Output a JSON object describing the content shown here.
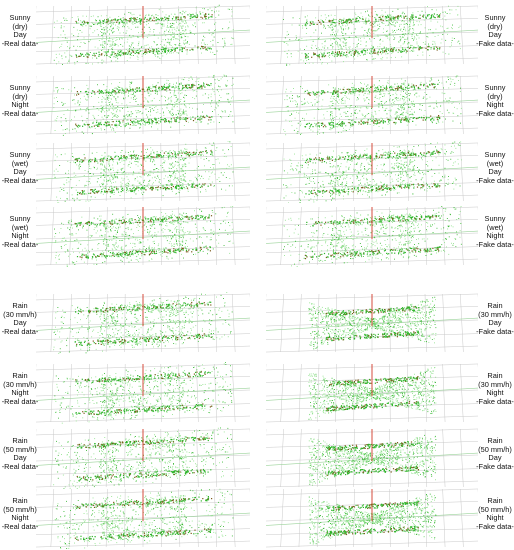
{
  "rows": [
    {
      "left_label": [
        "Sunny",
        "(dry)",
        "Day",
        "-Real data-"
      ],
      "right_label": [
        "Sunny",
        "(dry)",
        "Day",
        "-Fake data-"
      ],
      "left_style": "box",
      "right_style": "box"
    },
    {
      "left_label": [
        "Sunny",
        "(dry)",
        "Night",
        "-Real data-"
      ],
      "right_label": [
        "Sunny",
        "(dry)",
        "Night",
        "-Fake data-"
      ],
      "left_style": "box",
      "right_style": "box"
    },
    {
      "left_label": [
        "Sunny",
        "(wet)",
        "Day",
        "-Real data-"
      ],
      "right_label": [
        "Sunny",
        "(wet)",
        "Day",
        "-Fake data-"
      ],
      "left_style": "box",
      "right_style": "box"
    },
    {
      "left_label": [
        "Sunny",
        "(wet)",
        "Night",
        "-Real data-"
      ],
      "right_label": [
        "Sunny",
        "(wet)",
        "Night",
        "-Fake data-"
      ],
      "left_style": "box",
      "right_style": "box"
    },
    {
      "left_label": [
        "Rain",
        "(30 mm/h)",
        "Day",
        "-Real data-"
      ],
      "right_label": [
        "Rain",
        "(30 mm/h)",
        "Day",
        "-Fake data-"
      ],
      "left_style": "box",
      "right_style": "hourglass"
    },
    {
      "left_label": [
        "Rain",
        "(30 mm/h)",
        "Night",
        "-Real data-"
      ],
      "right_label": [
        "Rain",
        "(30 mm/h)",
        "Night",
        "-Fake data-"
      ],
      "left_style": "box",
      "right_style": "hourglass"
    },
    {
      "left_label": [
        "Rain",
        "(50 mm/h)",
        "Day",
        "-Real data-"
      ],
      "right_label": [
        "Rain",
        "(50 mm/h)",
        "Day",
        "-Fake data-"
      ],
      "left_style": "box",
      "right_style": "hourglass"
    },
    {
      "left_label": [
        "Rain",
        "(50 mm/h)",
        "Night",
        "-Real data-"
      ],
      "right_label": [
        "Rain",
        "(50 mm/h)",
        "Night",
        "-Fake data-"
      ],
      "left_style": "box",
      "right_style": "hourglass"
    }
  ],
  "colors": {
    "points_light": "#8ee28a",
    "points_dark": "#2fb52a",
    "ridge": "#7a5a1a",
    "grid": "#c9c9c9",
    "axis_red": "#d23a2a",
    "label_text": "#111111"
  }
}
